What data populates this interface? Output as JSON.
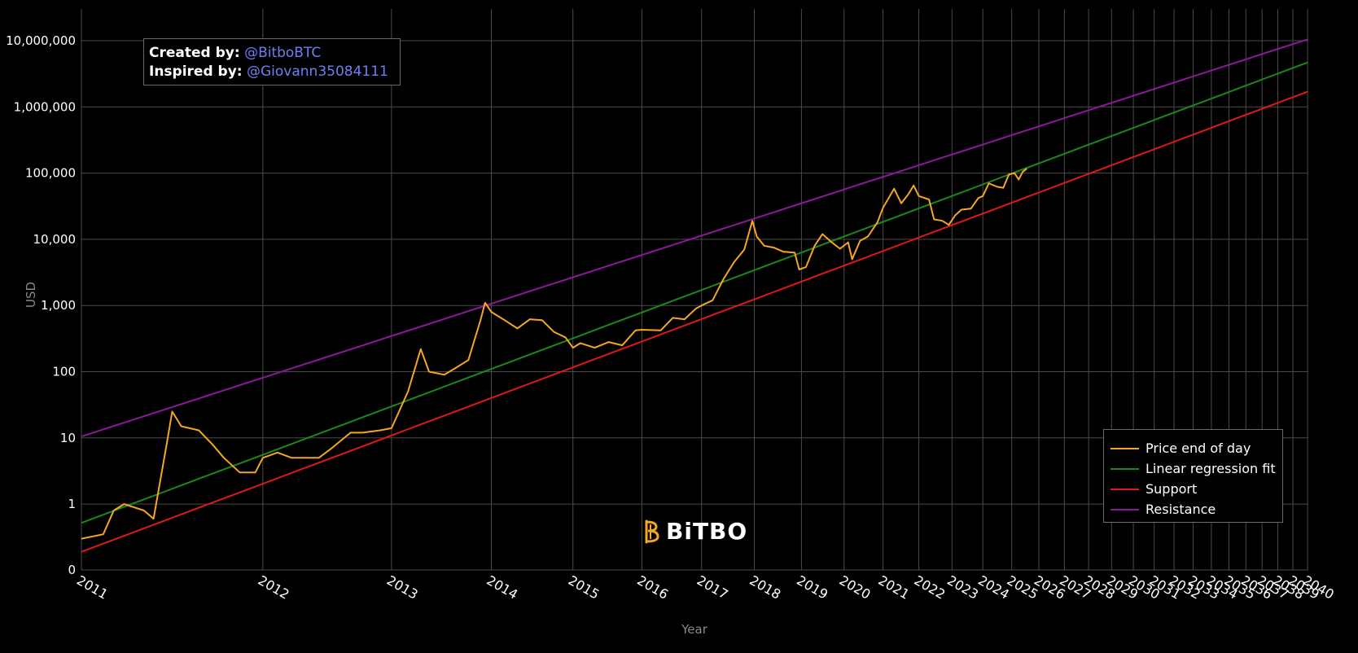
{
  "credits": {
    "created_label": "Created by:",
    "created_handle": "@BitboBTC",
    "inspired_label": "Inspired by:",
    "inspired_handle": "@Giovann35084111"
  },
  "logo": {
    "text": "BiTBO",
    "icon": "bitbo-b-icon"
  },
  "colors": {
    "background": "#000000",
    "grid": "#4a4a4a",
    "price": "#f5a623",
    "regression": "#1a8a1a",
    "support": "#e11919",
    "resistance": "#8b1a9a",
    "logo_accent": "#f5a623"
  },
  "chart_data": {
    "type": "line",
    "title": "",
    "xlabel": "Year",
    "ylabel": "USD",
    "y_scale": "log",
    "x_scale": "log (years since genesis)",
    "y_ticks": [
      "0",
      "1",
      "10",
      "100",
      "1,000",
      "10,000",
      "100,000",
      "1,000,000",
      "10,000,000"
    ],
    "x_ticks": [
      "2011",
      "2012",
      "2013",
      "2014",
      "2015",
      "2016",
      "2017",
      "2018",
      "2019",
      "2020",
      "2021",
      "2022",
      "2023",
      "2024",
      "2025",
      "2026",
      "2027",
      "2028",
      "2029",
      "2030",
      "2031",
      "2032",
      "2033",
      "2034",
      "2035",
      "2036",
      "2037",
      "2038",
      "2039",
      "2040"
    ],
    "grid": true,
    "legend_position": "bottom-right",
    "legend": [
      "Price end of day",
      "Linear regression fit",
      "Support",
      "Resistance"
    ],
    "series": [
      {
        "name": "Price end of day",
        "points": [
          [
            2011.0,
            0.3
          ],
          [
            2011.1,
            0.35
          ],
          [
            2011.15,
            0.8
          ],
          [
            2011.2,
            1.0
          ],
          [
            2011.3,
            0.8
          ],
          [
            2011.35,
            0.6
          ],
          [
            2011.42,
            8
          ],
          [
            2011.45,
            25
          ],
          [
            2011.5,
            15
          ],
          [
            2011.6,
            13
          ],
          [
            2011.68,
            8
          ],
          [
            2011.75,
            5
          ],
          [
            2011.85,
            3
          ],
          [
            2011.95,
            3
          ],
          [
            2012.0,
            5
          ],
          [
            2012.1,
            6
          ],
          [
            2012.2,
            5
          ],
          [
            2012.4,
            5
          ],
          [
            2012.5,
            7
          ],
          [
            2012.65,
            12
          ],
          [
            2012.75,
            12
          ],
          [
            2012.9,
            13
          ],
          [
            2013.0,
            14
          ],
          [
            2013.15,
            50
          ],
          [
            2013.27,
            220
          ],
          [
            2013.35,
            100
          ],
          [
            2013.5,
            90
          ],
          [
            2013.6,
            110
          ],
          [
            2013.75,
            150
          ],
          [
            2013.88,
            600
          ],
          [
            2013.93,
            1100
          ],
          [
            2014.0,
            800
          ],
          [
            2014.15,
            600
          ],
          [
            2014.3,
            450
          ],
          [
            2014.45,
            620
          ],
          [
            2014.6,
            600
          ],
          [
            2014.75,
            400
          ],
          [
            2014.9,
            330
          ],
          [
            2015.0,
            230
          ],
          [
            2015.1,
            270
          ],
          [
            2015.3,
            230
          ],
          [
            2015.5,
            280
          ],
          [
            2015.7,
            250
          ],
          [
            2015.9,
            420
          ],
          [
            2016.0,
            430
          ],
          [
            2016.3,
            420
          ],
          [
            2016.5,
            650
          ],
          [
            2016.7,
            620
          ],
          [
            2016.9,
            900
          ],
          [
            2017.0,
            1000
          ],
          [
            2017.2,
            1200
          ],
          [
            2017.4,
            2500
          ],
          [
            2017.6,
            4500
          ],
          [
            2017.8,
            7000
          ],
          [
            2017.96,
            19000
          ],
          [
            2018.05,
            11000
          ],
          [
            2018.2,
            8000
          ],
          [
            2018.4,
            7500
          ],
          [
            2018.6,
            6500
          ],
          [
            2018.85,
            6300
          ],
          [
            2018.95,
            3500
          ],
          [
            2019.1,
            3800
          ],
          [
            2019.3,
            8000
          ],
          [
            2019.48,
            12000
          ],
          [
            2019.7,
            9000
          ],
          [
            2019.9,
            7200
          ],
          [
            2020.1,
            9000
          ],
          [
            2020.2,
            5000
          ],
          [
            2020.4,
            9500
          ],
          [
            2020.6,
            11000
          ],
          [
            2020.85,
            18000
          ],
          [
            2021.0,
            30000
          ],
          [
            2021.3,
            58000
          ],
          [
            2021.5,
            35000
          ],
          [
            2021.7,
            48000
          ],
          [
            2021.85,
            65000
          ],
          [
            2022.0,
            45000
          ],
          [
            2022.3,
            40000
          ],
          [
            2022.45,
            20000
          ],
          [
            2022.7,
            19000
          ],
          [
            2022.9,
            16500
          ],
          [
            2023.1,
            23000
          ],
          [
            2023.3,
            28000
          ],
          [
            2023.6,
            29000
          ],
          [
            2023.85,
            42000
          ],
          [
            2024.0,
            45000
          ],
          [
            2024.2,
            70000
          ],
          [
            2024.5,
            62000
          ],
          [
            2024.7,
            60000
          ],
          [
            2024.9,
            95000
          ],
          [
            2025.1,
            100000
          ],
          [
            2025.25,
            80000
          ],
          [
            2025.4,
            105000
          ],
          [
            2025.55,
            117000
          ]
        ]
      },
      {
        "name": "Linear regression fit",
        "points": [
          [
            2011.0,
            0.52
          ],
          [
            2040.0,
            4700000
          ]
        ]
      },
      {
        "name": "Support",
        "points": [
          [
            2011.0,
            0.19
          ],
          [
            2040.0,
            1700000
          ]
        ]
      },
      {
        "name": "Resistance",
        "points": [
          [
            2011.0,
            10.5
          ],
          [
            2040.0,
            10500000
          ]
        ]
      }
    ]
  }
}
